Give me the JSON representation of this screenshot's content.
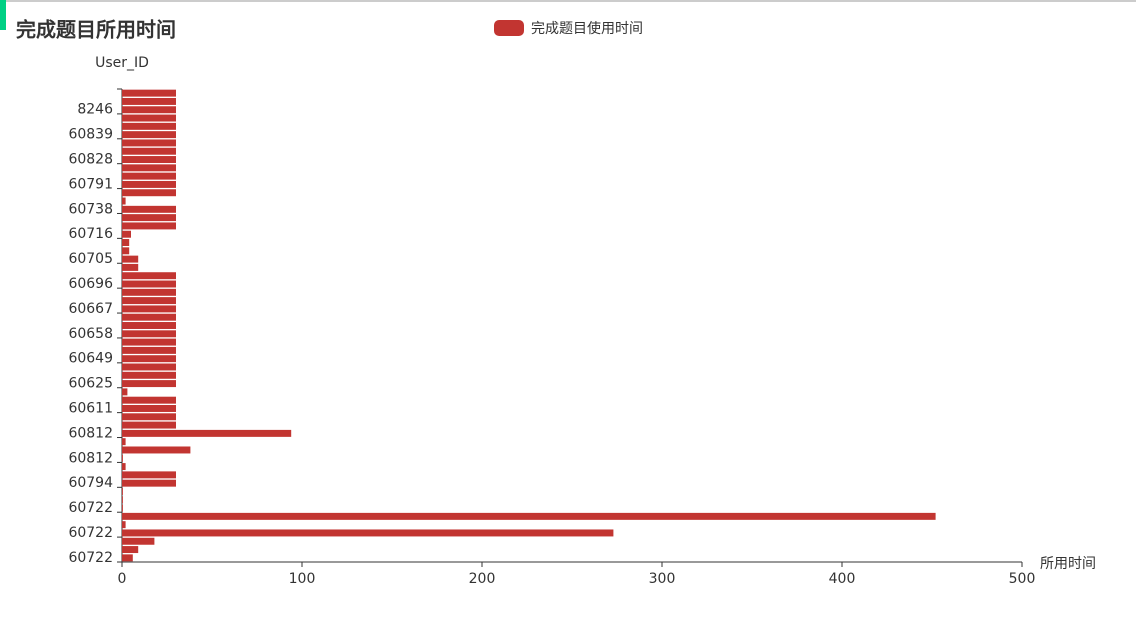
{
  "chart_data": {
    "type": "bar",
    "orientation": "horizontal",
    "title": "完成题目所用时间",
    "y_axis_label": "User_ID",
    "x_axis_label": "所用时间",
    "categories": [
      "60722",
      null,
      null,
      "60722",
      null,
      null,
      "60722",
      null,
      null,
      "60794",
      null,
      null,
      "60812",
      null,
      null,
      "60812",
      null,
      null,
      "60611",
      null,
      null,
      "60625",
      null,
      null,
      "60649",
      null,
      null,
      "60658",
      null,
      null,
      "60667",
      null,
      null,
      "60696",
      null,
      null,
      "60705",
      null,
      null,
      "60716",
      null,
      null,
      "60738",
      null,
      null,
      "60791",
      null,
      null,
      "60828",
      null,
      null,
      "60839",
      null,
      null,
      "8246",
      null,
      null
    ],
    "series": [
      {
        "name": "完成题目使用时间",
        "color": "#c23531",
        "values": [
          6,
          9,
          18,
          273,
          2,
          452,
          0.5,
          0.5,
          0.5,
          30,
          30,
          2,
          0.5,
          38,
          2,
          94,
          30,
          30,
          30,
          30,
          3,
          30,
          30,
          30,
          30,
          30,
          30,
          30,
          30,
          30,
          30,
          30,
          30,
          30,
          30,
          9,
          9,
          4,
          4,
          5,
          30,
          30,
          30,
          2,
          30,
          30,
          30,
          30,
          30,
          30,
          30,
          30,
          30,
          30,
          30,
          30,
          30
        ]
      }
    ],
    "xlim": [
      0,
      500
    ],
    "xticks": [
      0,
      100,
      200,
      300,
      400,
      500
    ]
  }
}
